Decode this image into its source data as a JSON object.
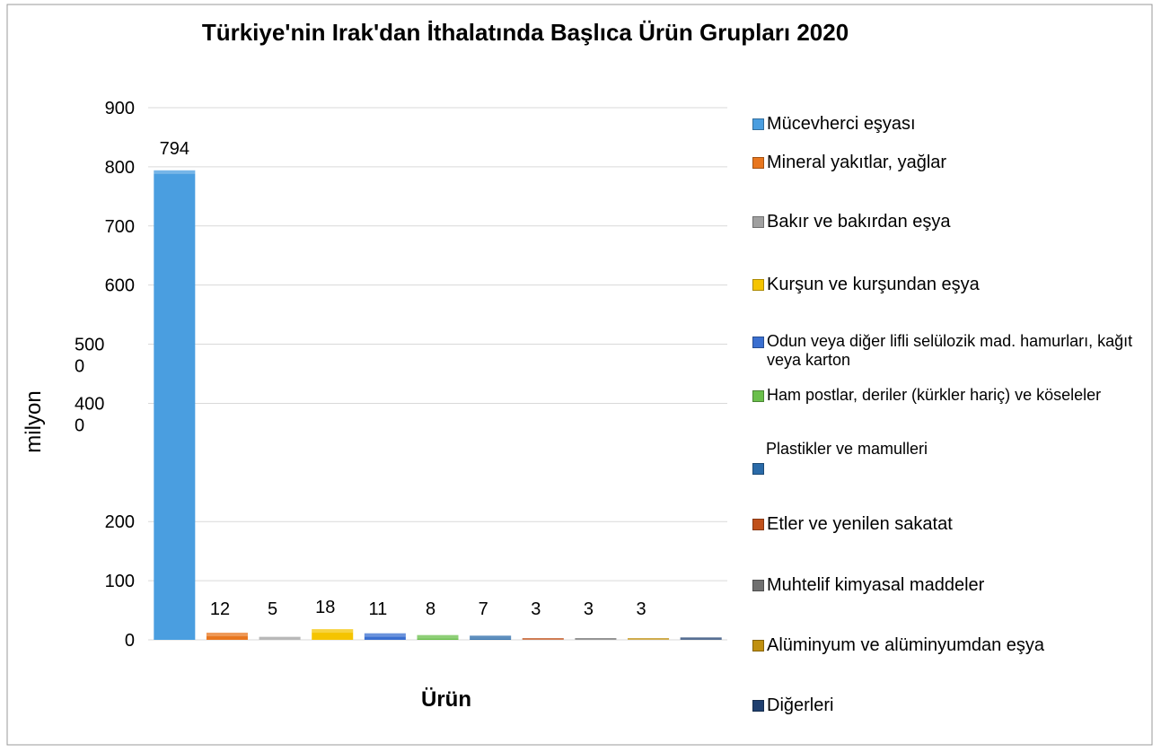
{
  "chart_data": {
    "type": "bar",
    "title": "Türkiye'nin Irak'dan İthalatında Başlıca Ürün Grupları 2020",
    "y_label": "milyon",
    "x_label": "Ürün",
    "categories": [
      "Mücevherci eşyası",
      "Mineral yakıtlar, yağlar",
      "Bakır ve bakırdan eşya",
      "Kurşun ve kurşundan eşya",
      "Odun veya diğer lifli selülozik mad. hamurları, kağıt veya karton",
      "Ham postlar, deriler (kürkler hariç) ve köseleler",
      "Plastikler ve mamulleri",
      "Etler ve yenilen sakatat",
      "Muhtelif kimyasal maddeler",
      "Alüminyum ve alüminyumdan eşya",
      "Diğerleri"
    ],
    "values": [
      794,
      12,
      5,
      18,
      11,
      8,
      7,
      3,
      3,
      3,
      4
    ],
    "value_labels": [
      "794",
      "12",
      "5",
      "18",
      "11",
      "8",
      "7",
      "3",
      "3",
      "3",
      null
    ],
    "colors": [
      "#4a9ee0",
      "#e8761e",
      "#a0a0a0",
      "#f5c400",
      "#3a6fd0",
      "#6abf4b",
      "#2a6aa8",
      "#c0501a",
      "#707070",
      "#c09010",
      "#1f3f6f"
    ],
    "ylim": [
      0,
      900
    ],
    "yticks": [
      0,
      100,
      200,
      {
        "value": 400,
        "label": "400 0"
      },
      {
        "value": 500,
        "label": "500 0"
      },
      600,
      700,
      800,
      900
    ],
    "grid": true,
    "legend": "right"
  }
}
